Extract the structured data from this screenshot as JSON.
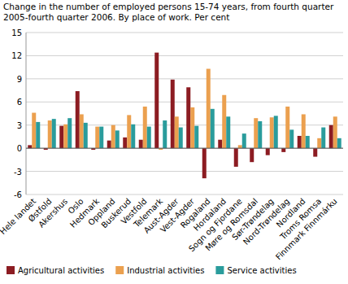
{
  "chart_data": {
    "type": "bar",
    "title": "Change in the number of employed persons 15-74 years, from fourth quarter 2005-fourth quarter 2006. By place of work. Per cent",
    "categories": [
      "Hele landet",
      "Østfold",
      "Akershus",
      "Oslo",
      "Hedmark",
      "Oppland",
      "Buskerud",
      "Vestfold",
      "Telemark",
      "Aust-Agder",
      "Vest-Agder",
      "Rogaland",
      "Hordaland",
      "Sogn og Fjordane",
      "Møre og Romsdal",
      "Sør-Trøndelag",
      "Nord-Trøndelag",
      "Nordland",
      "Troms Romsa",
      "Finnmark Finnmárku"
    ],
    "series": [
      {
        "name": "Agricultural activities",
        "color": "#8c1c22",
        "values": [
          0.4,
          -0.2,
          2.9,
          7.4,
          -0.2,
          1.0,
          1.4,
          1.1,
          12.4,
          8.9,
          7.9,
          -3.9,
          1.1,
          -2.4,
          -1.8,
          -0.9,
          -0.5,
          1.6,
          -1.1,
          3.0
        ]
      },
      {
        "name": "Industrial activities",
        "color": "#eba04f",
        "values": [
          4.6,
          3.6,
          3.1,
          4.4,
          2.8,
          3.0,
          4.3,
          5.4,
          -0.2,
          4.1,
          5.3,
          10.3,
          6.9,
          0.4,
          3.9,
          4.0,
          5.4,
          4.4,
          1.3,
          4.1
        ]
      },
      {
        "name": "Service activities",
        "color": "#2a9c9c",
        "values": [
          3.4,
          3.8,
          3.9,
          3.3,
          2.8,
          2.3,
          3.1,
          2.8,
          3.6,
          2.7,
          2.9,
          5.1,
          4.1,
          1.9,
          3.5,
          4.2,
          2.4,
          1.6,
          2.7,
          1.3
        ]
      }
    ],
    "ylim": [
      -6,
      15
    ],
    "yticks": [
      -6,
      -3,
      0,
      3,
      6,
      9,
      12,
      15
    ],
    "grid": true,
    "legend": "bottom"
  }
}
